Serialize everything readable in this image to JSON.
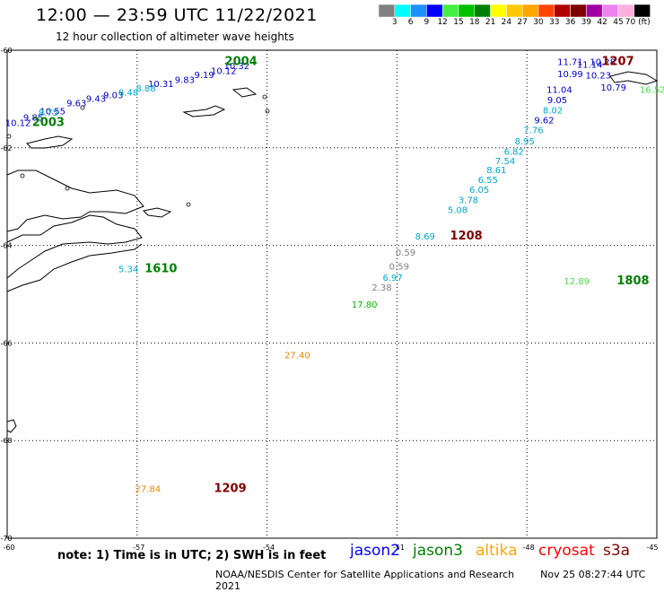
{
  "header": {
    "title": "12:00 — 23:59 UTC 11/22/2021",
    "subtitle": "12 hour collection of altimeter wave heights"
  },
  "colorbar": {
    "colors": [
      "#808080",
      "#00ffff",
      "#1e90ff",
      "#0000ff",
      "#44ee44",
      "#00c000",
      "#008000",
      "#ffff00",
      "#ffc800",
      "#ffa500",
      "#ff4500",
      "#b00000",
      "#800000",
      "#a000a0",
      "#ee82ee",
      "#ffb0e0",
      "#000000"
    ],
    "labels": [
      "3",
      "6",
      "9",
      "12",
      "15",
      "18",
      "21",
      "24",
      "27",
      "30",
      "33",
      "36",
      "39",
      "42",
      "45",
      "70 (ft)"
    ]
  },
  "axes": {
    "lat_labels": [
      "-60",
      "-62",
      "-64",
      "-66",
      "-68",
      "-70"
    ],
    "lon_labels": [
      "-60",
      "-57",
      "-54",
      "-51",
      "-48",
      "-45"
    ]
  },
  "map": {
    "tracks": [
      {
        "mission": "jason2",
        "color": "#0000cc",
        "text": "10.12",
        "lat": -61.55,
        "lon": -59.75
      },
      {
        "mission": "jason2",
        "color": "#0000cc",
        "text": "9.85",
        "lat": -61.44,
        "lon": -59.4
      },
      {
        "mission": "jason2",
        "color": "#0000cc",
        "text": "10.55",
        "lat": -61.31,
        "lon": -58.95
      },
      {
        "mission": "jason2",
        "color": "#0000cc",
        "text": "9.63",
        "lat": -61.15,
        "lon": -58.4
      },
      {
        "mission": "jason2",
        "color": "#0000cc",
        "text": "9.43",
        "lat": -61.06,
        "lon": -57.95
      },
      {
        "mission": "jason2",
        "color": "#0000cc",
        "text": "9.03",
        "lat": -60.98,
        "lon": -57.55
      },
      {
        "mission": "jason2",
        "color": "#0000cc",
        "text": "10.31",
        "lat": -60.75,
        "lon": -56.45
      },
      {
        "mission": "jason2",
        "color": "#0000cc",
        "text": "9.83",
        "lat": -60.67,
        "lon": -55.9
      },
      {
        "mission": "jason2",
        "color": "#0000cc",
        "text": "9.19",
        "lat": -60.57,
        "lon": -55.45
      },
      {
        "mission": "jason2",
        "color": "#0000cc",
        "text": "10.12",
        "lat": -60.49,
        "lon": -55.0
      },
      {
        "mission": "jason2",
        "color": "#0000cc",
        "text": "10.32",
        "lat": -60.39,
        "lon": -54.7
      },
      {
        "mission": "jason2",
        "color": "#0000cc",
        "text": "11.71",
        "lat": -60.3,
        "lon": -47.0
      },
      {
        "mission": "jason2",
        "color": "#0000cc",
        "text": "10.99",
        "lat": -60.55,
        "lon": -47.0
      },
      {
        "mission": "jason2",
        "color": "#0000cc",
        "text": "11.04",
        "lat": -60.87,
        "lon": -47.25
      },
      {
        "mission": "jason2",
        "color": "#0000cc",
        "text": "9.05",
        "lat": -61.08,
        "lon": -47.3
      },
      {
        "mission": "jason2",
        "color": "#0000cc",
        "text": "9.62",
        "lat": -61.5,
        "lon": -47.6
      },
      {
        "mission": "jason2",
        "color": "#0000cc",
        "text": "10.79",
        "lat": -60.83,
        "lon": -46.0
      },
      {
        "mission": "jason2",
        "color": "#0000cc",
        "text": "10.23",
        "lat": -60.58,
        "lon": -46.35
      },
      {
        "mission": "jason2",
        "color": "#0000cc",
        "text": "11.14",
        "lat": -60.36,
        "lon": -46.55
      },
      {
        "mission": "jason2",
        "color": "#0000cc",
        "text": "10.28",
        "lat": -60.3,
        "lon": -46.25
      },
      {
        "mission": "jason2",
        "color": "#00a8cc",
        "text": "8.75",
        "lat": -61.34,
        "lon": -59.05
      },
      {
        "mission": "jason2",
        "color": "#00a8cc",
        "text": "8.48",
        "lat": -60.93,
        "lon": -57.2
      },
      {
        "mission": "jason2",
        "color": "#00a8cc",
        "text": "8.88",
        "lat": -60.85,
        "lon": -56.8
      },
      {
        "mission": "jason2",
        "color": "#00a8cc",
        "text": "8.02",
        "lat": -61.3,
        "lon": -47.4
      },
      {
        "mission": "jason2",
        "color": "#00a8cc",
        "text": "7.76",
        "lat": -61.7,
        "lon": -47.85
      },
      {
        "mission": "jason2",
        "color": "#00a8cc",
        "text": "8.95",
        "lat": -61.93,
        "lon": -48.05
      },
      {
        "mission": "jason2",
        "color": "#00a8cc",
        "text": "6.82",
        "lat": -62.14,
        "lon": -48.3
      },
      {
        "mission": "jason2",
        "color": "#00a8cc",
        "text": "7.54",
        "lat": -62.33,
        "lon": -48.5
      },
      {
        "mission": "jason2",
        "color": "#00a8cc",
        "text": "8.61",
        "lat": -62.52,
        "lon": -48.7
      },
      {
        "mission": "jason2",
        "color": "#00a8cc",
        "text": "6.55",
        "lat": -62.72,
        "lon": -48.9
      },
      {
        "mission": "jason2",
        "color": "#00a8cc",
        "text": "6.05",
        "lat": -62.92,
        "lon": -49.1
      },
      {
        "mission": "jason2",
        "color": "#00a8cc",
        "text": "3.78",
        "lat": -63.13,
        "lon": -49.35
      },
      {
        "mission": "jason2",
        "color": "#00a8cc",
        "text": "5.08",
        "lat": -63.34,
        "lon": -49.6
      },
      {
        "mission": "jason2",
        "color": "#00a8cc",
        "text": "8.69",
        "lat": -63.88,
        "lon": -50.35
      },
      {
        "mission": "jason2",
        "color": "#00a8cc",
        "text": "6.97",
        "lat": -64.72,
        "lon": -51.1
      },
      {
        "mission": "jason2",
        "color": "#00a8cc",
        "text": "5.34",
        "lat": -64.55,
        "lon": -57.2
      },
      {
        "mission": "jason2",
        "color": "#808080",
        "text": "0.59",
        "lat": -64.21,
        "lon": -50.8
      },
      {
        "mission": "jason2",
        "color": "#808080",
        "text": "0.59",
        "lat": -64.49,
        "lon": -50.95
      },
      {
        "mission": "jason2",
        "color": "#808080",
        "text": "2.38",
        "lat": -64.93,
        "lon": -51.35
      },
      {
        "mission": "jason3",
        "color": "#00bb00",
        "text": "17.80",
        "lat": -65.28,
        "lon": -51.75
      },
      {
        "mission": "jason3",
        "color": "#44dd44",
        "text": "12.89",
        "lat": -64.8,
        "lon": -46.85
      },
      {
        "mission": "jason3",
        "color": "#44dd44",
        "text": "16.52",
        "lat": -60.87,
        "lon": -45.1
      },
      {
        "mission": "altika",
        "color": "#ee8800",
        "text": "27.40",
        "lat": -66.31,
        "lon": -53.3
      },
      {
        "mission": "altika",
        "color": "#ee8800",
        "text": "27.84",
        "lat": -69.05,
        "lon": -56.75
      }
    ],
    "time_labels": [
      {
        "text": "2003",
        "color": "#008000",
        "lat": -61.55,
        "lon": -59.05
      },
      {
        "text": "2004",
        "color": "#008000",
        "lat": -60.3,
        "lon": -54.6
      },
      {
        "text": "1610",
        "color": "#008000",
        "lat": -64.55,
        "lon": -56.45
      },
      {
        "text": "1808",
        "color": "#008000",
        "lat": -64.8,
        "lon": -45.55
      },
      {
        "text": "1208",
        "color": "#800000",
        "lat": -63.88,
        "lon": -49.4
      },
      {
        "text": "1207",
        "color": "#800000",
        "lat": -60.3,
        "lon": -45.9
      },
      {
        "text": "1209",
        "color": "#800000",
        "lat": -69.05,
        "lon": -54.85
      }
    ]
  },
  "footer": {
    "note": "note: 1) Time is in UTC; 2) SWH is in feet",
    "missions": [
      {
        "name": "jason2",
        "color": "#0000ff"
      },
      {
        "name": "jason3",
        "color": "#008000"
      },
      {
        "name": "altika",
        "color": "#ffa500"
      },
      {
        "name": "cryosat",
        "color": "#ff0000"
      },
      {
        "name": "s3a",
        "color": "#800000"
      }
    ],
    "credit": "NOAA/NESDIS Center for Satellite Applications and Research",
    "timestamp": "Nov 25 08:27:44 UTC 2021"
  }
}
